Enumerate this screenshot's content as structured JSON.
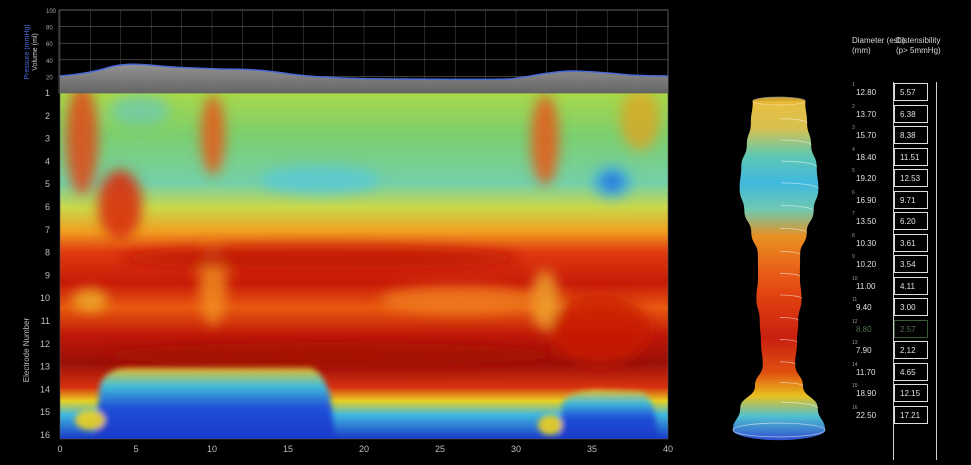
{
  "pressure_panel": {
    "axis_label_pressure": "Pressure (mmHg)",
    "axis_label_volume": "Volume (ml)",
    "ticks": [
      "100",
      "80",
      "60",
      "40",
      "20"
    ]
  },
  "heatmap": {
    "ylabel": "Electrode Number",
    "y_ticks": [
      "1",
      "2",
      "3",
      "4",
      "5",
      "6",
      "7",
      "8",
      "9",
      "10",
      "11",
      "12",
      "13",
      "14",
      "15",
      "16"
    ],
    "x_ticks": [
      "0",
      "5",
      "10",
      "15",
      "20",
      "25",
      "30",
      "35",
      "40"
    ]
  },
  "table": {
    "diameter_header": "Diameter (est.)\n(mm)",
    "distensibility_header": "Distensibility\n(p> 5mmHg)",
    "rows": [
      {
        "n": "1",
        "diameter": "12.80",
        "dist": "5.57"
      },
      {
        "n": "2",
        "diameter": "13.70",
        "dist": "6.38"
      },
      {
        "n": "3",
        "diameter": "15.70",
        "dist": "8.38"
      },
      {
        "n": "4",
        "diameter": "18.40",
        "dist": "11.51"
      },
      {
        "n": "5",
        "diameter": "19.20",
        "dist": "12.53"
      },
      {
        "n": "6",
        "diameter": "16.90",
        "dist": "9.71"
      },
      {
        "n": "7",
        "diameter": "13.50",
        "dist": "6.20"
      },
      {
        "n": "8",
        "diameter": "10.30",
        "dist": "3.61"
      },
      {
        "n": "9",
        "diameter": "10.20",
        "dist": "3.54"
      },
      {
        "n": "10",
        "diameter": "11.00",
        "dist": "4.11"
      },
      {
        "n": "11",
        "diameter": "9.40",
        "dist": "3.00"
      },
      {
        "n": "12",
        "diameter": "8.80",
        "dist": "2.57"
      },
      {
        "n": "13",
        "diameter": "7.90",
        "dist": "2.12"
      },
      {
        "n": "14",
        "diameter": "11.70",
        "dist": "4.65"
      },
      {
        "n": "15",
        "diameter": "18.90",
        "dist": "12.15"
      },
      {
        "n": "16",
        "diameter": "22.50",
        "dist": "17.21"
      }
    ]
  },
  "colors": {
    "background": "#000000",
    "pressure_line": "#4a6ad8",
    "volume_fill": "#8a8a8a"
  }
}
